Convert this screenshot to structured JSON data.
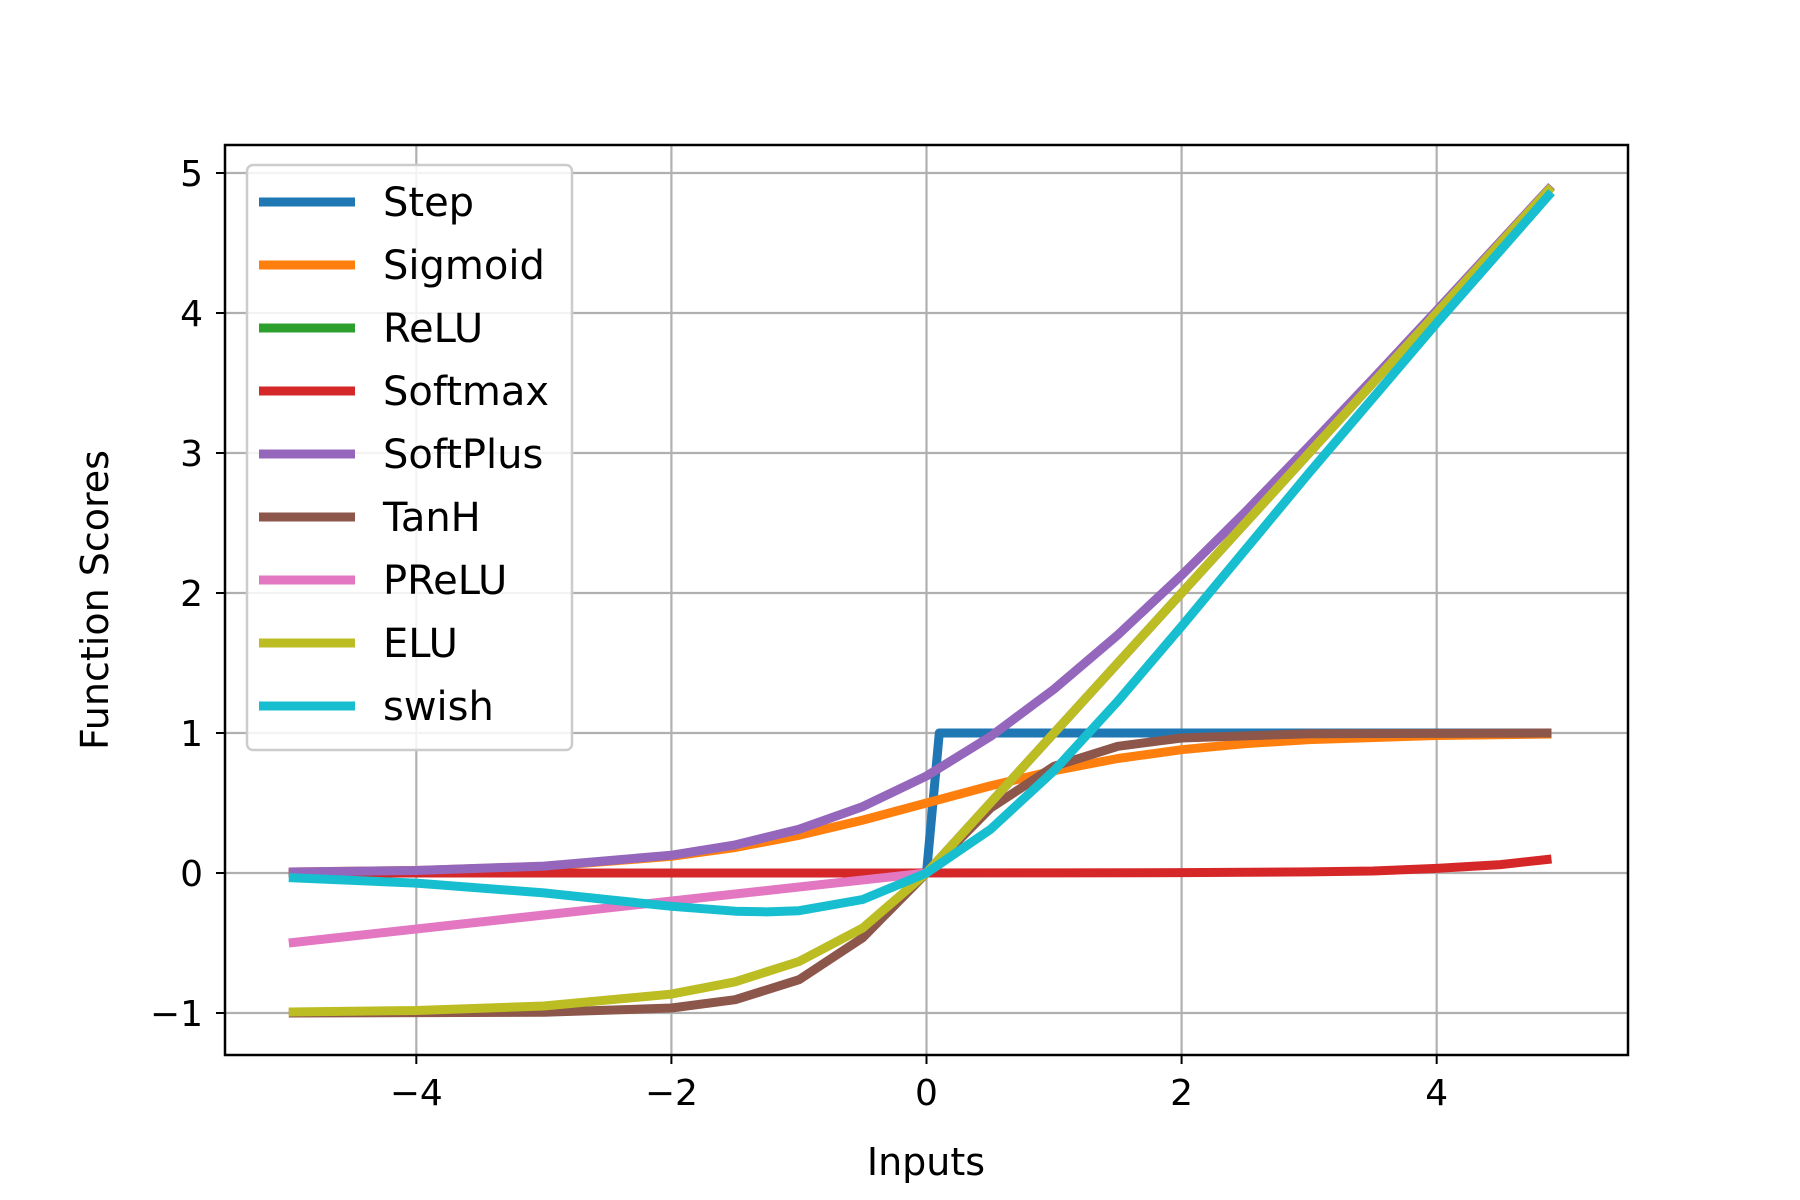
{
  "chart_data": {
    "type": "line",
    "title": "",
    "xlabel": "Inputs",
    "ylabel": "Function Scores",
    "xlim": [
      -5.5,
      5.5
    ],
    "ylim": [
      -1.3,
      5.2
    ],
    "xticks": [
      -4,
      -2,
      0,
      2,
      4
    ],
    "yticks": [
      -1,
      0,
      1,
      2,
      3,
      4,
      5
    ],
    "xtick_labels": [
      "−4",
      "−2",
      "0",
      "2",
      "4"
    ],
    "ytick_labels": [
      "−1",
      "0",
      "1",
      "2",
      "3",
      "4",
      "5"
    ],
    "grid": true,
    "legend_position": "upper-left",
    "series": [
      {
        "name": "Step",
        "color": "#1f77b4",
        "x": [
          -5.0,
          0.0,
          0.1,
          4.9
        ],
        "y": [
          0,
          0,
          1,
          1
        ]
      },
      {
        "name": "Sigmoid",
        "color": "#ff7f0e",
        "x": [
          -5.0,
          -4.0,
          -3.0,
          -2.0,
          -1.5,
          -1.0,
          -0.5,
          0.0,
          0.5,
          1.0,
          1.5,
          2.0,
          2.5,
          3.0,
          4.0,
          4.9
        ],
        "y": [
          0.007,
          0.018,
          0.047,
          0.119,
          0.182,
          0.269,
          0.378,
          0.5,
          0.622,
          0.731,
          0.818,
          0.881,
          0.924,
          0.953,
          0.982,
          0.993
        ]
      },
      {
        "name": "ReLU",
        "color": "#2ca02c",
        "x": [
          -5.0,
          0.0,
          4.9
        ],
        "y": [
          0,
          0,
          4.9
        ]
      },
      {
        "name": "Softmax",
        "color": "#d62728",
        "x": [
          -5.0,
          -1.0,
          1.0,
          2.0,
          3.0,
          3.5,
          4.0,
          4.5,
          4.9
        ],
        "y": [
          0.0,
          0.0,
          0.001,
          0.003,
          0.008,
          0.014,
          0.033,
          0.06,
          0.1
        ]
      },
      {
        "name": "SoftPlus",
        "color": "#9467bd",
        "x": [
          -5.0,
          -4.0,
          -3.0,
          -2.0,
          -1.5,
          -1.0,
          -0.5,
          0.0,
          0.5,
          1.0,
          1.5,
          2.0,
          2.5,
          3.0,
          3.5,
          4.0,
          4.9
        ],
        "y": [
          0.007,
          0.018,
          0.049,
          0.127,
          0.201,
          0.313,
          0.474,
          0.693,
          0.974,
          1.313,
          1.701,
          2.127,
          2.579,
          3.049,
          3.53,
          4.018,
          4.907
        ]
      },
      {
        "name": "TanH",
        "color": "#8c564b",
        "x": [
          -5.0,
          -3.0,
          -2.0,
          -1.5,
          -1.0,
          -0.5,
          0.0,
          0.5,
          1.0,
          1.5,
          2.0,
          3.0,
          4.9
        ],
        "y": [
          -1.0,
          -0.995,
          -0.964,
          -0.905,
          -0.762,
          -0.462,
          0.0,
          0.462,
          0.762,
          0.905,
          0.964,
          0.995,
          1.0
        ]
      },
      {
        "name": "PReLU",
        "color": "#e377c2",
        "x": [
          -5.0,
          0.0,
          4.9
        ],
        "y": [
          -0.5,
          0,
          4.9
        ]
      },
      {
        "name": "ELU",
        "color": "#bcbd22",
        "x": [
          -5.0,
          -4.0,
          -3.0,
          -2.0,
          -1.5,
          -1.0,
          -0.5,
          0.0,
          1.0,
          2.0,
          3.0,
          4.0,
          4.9
        ],
        "y": [
          -0.993,
          -0.982,
          -0.95,
          -0.865,
          -0.777,
          -0.632,
          -0.393,
          0.0,
          1.0,
          2.0,
          3.0,
          4.0,
          4.9
        ]
      },
      {
        "name": "swish",
        "color": "#17becf",
        "x": [
          -5.0,
          -4.0,
          -3.0,
          -2.5,
          -2.0,
          -1.5,
          -1.25,
          -1.0,
          -0.5,
          0.0,
          0.5,
          1.0,
          1.5,
          2.0,
          2.5,
          3.0,
          4.0,
          4.9
        ],
        "y": [
          -0.033,
          -0.072,
          -0.142,
          -0.19,
          -0.238,
          -0.273,
          -0.278,
          -0.269,
          -0.189,
          0.0,
          0.311,
          0.731,
          1.227,
          1.762,
          2.31,
          2.858,
          3.928,
          4.863
        ]
      }
    ]
  }
}
